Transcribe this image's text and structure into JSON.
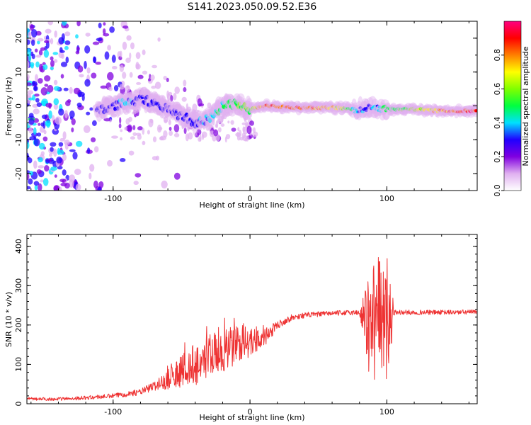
{
  "title": "S141.2023.050.09.52.E36",
  "chart_data": [
    {
      "type": "heatmap",
      "name": "spectrogram",
      "xlabel": "Height of straight line (km)",
      "ylabel": "Frequency (Hz)",
      "xlim": [
        -163,
        166
      ],
      "ylim": [
        -25,
        25
      ],
      "xticks": [
        -100,
        0,
        100
      ],
      "yticks": [
        -20,
        -10,
        0,
        10,
        20
      ],
      "x_tick_labels": [
        "-100",
        "0",
        "100"
      ],
      "y_tick_labels": [
        "-20",
        "-10",
        "0",
        "10",
        "20"
      ],
      "colorbar": {
        "label": "Normalized spectral amplitude",
        "range": [
          0.0,
          1.0
        ],
        "ticks": [
          0.0,
          0.2,
          0.4,
          0.6,
          0.8
        ],
        "tick_labels": [
          "0.0",
          "0.2",
          "0.4",
          "0.6",
          "0.8"
        ],
        "colormap": [
          "#ffffff",
          "#e0b0f0",
          "#8000e0",
          "#2000ff",
          "#00e0ff",
          "#00ff40",
          "#80ff00",
          "#ffff00",
          "#ff8000",
          "#ff0000",
          "#ff0080"
        ]
      },
      "ridge": {
        "x": [
          -110,
          -100,
          -90,
          -80,
          -70,
          -60,
          -50,
          -40,
          -30,
          -20,
          -10,
          0,
          10,
          30,
          60,
          80,
          90,
          100,
          120,
          140,
          166
        ],
        "frequency": [
          -1,
          0,
          1,
          2,
          1,
          -1,
          -3,
          -5,
          -4,
          0,
          0.5,
          -1,
          0,
          -0.5,
          -0.5,
          -1,
          -0.5,
          -1,
          -1,
          -1.5,
          -1.5
        ],
        "amplitude": [
          0.3,
          0.35,
          0.4,
          0.3,
          0.3,
          0.3,
          0.3,
          0.35,
          0.4,
          0.5,
          0.55,
          0.6,
          0.9,
          0.9,
          0.8,
          0.35,
          0.35,
          0.5,
          0.6,
          0.85,
          0.95
        ]
      }
    },
    {
      "type": "line",
      "name": "snr",
      "xlabel": "Height of straight line (km)",
      "ylabel": "SNR (10 * v/v)",
      "xlim": [
        -163,
        166
      ],
      "ylim": [
        0,
        430
      ],
      "xticks": [
        -100,
        0,
        100
      ],
      "yticks": [
        0,
        100,
        200,
        300,
        400
      ],
      "x_tick_labels": [
        "-100",
        "0",
        "100"
      ],
      "y_tick_labels": [
        "0",
        "100",
        "200",
        "300",
        "400"
      ],
      "color": "#ee3333",
      "series": [
        {
          "name": "SNR",
          "x": [
            -163,
            -140,
            -120,
            -100,
            -80,
            -70,
            -60,
            -50,
            -40,
            -30,
            -20,
            -10,
            0,
            10,
            20,
            30,
            40,
            60,
            80,
            88,
            95,
            102,
            105,
            120,
            140,
            166
          ],
          "y": [
            12,
            12,
            15,
            20,
            30,
            45,
            60,
            85,
            100,
            120,
            140,
            145,
            155,
            165,
            200,
            218,
            225,
            230,
            232,
            200,
            210,
            190,
            232,
            232,
            232,
            233
          ],
          "noise_amplitude": [
            4,
            4,
            5,
            6,
            8,
            12,
            25,
            45,
            55,
            60,
            60,
            55,
            35,
            25,
            10,
            8,
            7,
            6,
            7,
            150,
            160,
            120,
            7,
            6,
            6,
            6
          ]
        }
      ]
    }
  ]
}
